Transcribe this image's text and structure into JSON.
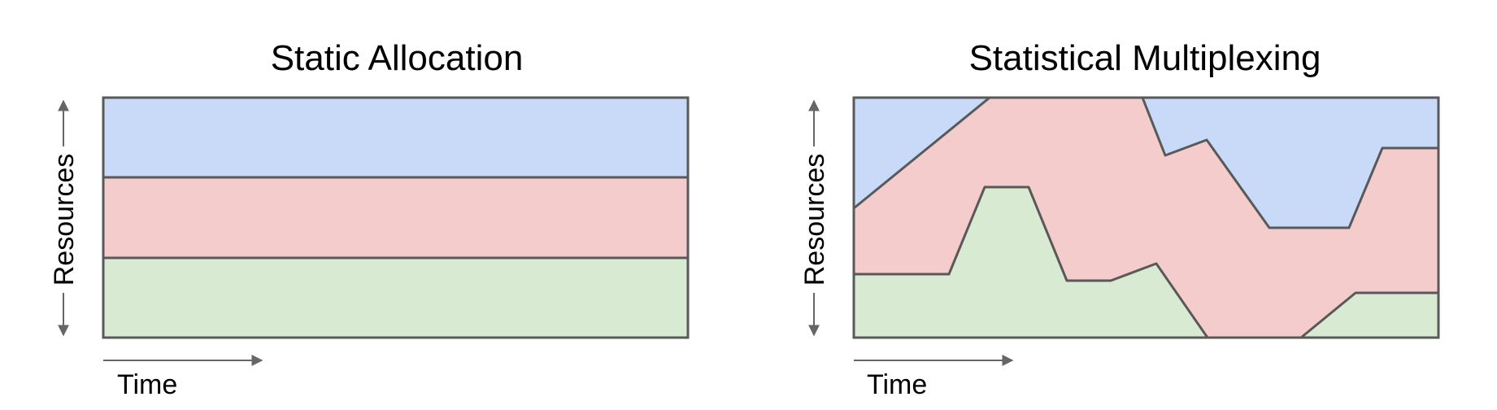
{
  "panels": [
    {
      "title": "Static Allocation",
      "y_label": "Resources",
      "x_label": "Time"
    },
    {
      "title": "Statistical Multiplexing",
      "y_label": "Resources",
      "x_label": "Time"
    }
  ],
  "colors": {
    "blue": "#c9daf8",
    "red": "#f4cccc",
    "green": "#d9ead3",
    "stroke": "#595959",
    "arrow": "#666666"
  }
}
